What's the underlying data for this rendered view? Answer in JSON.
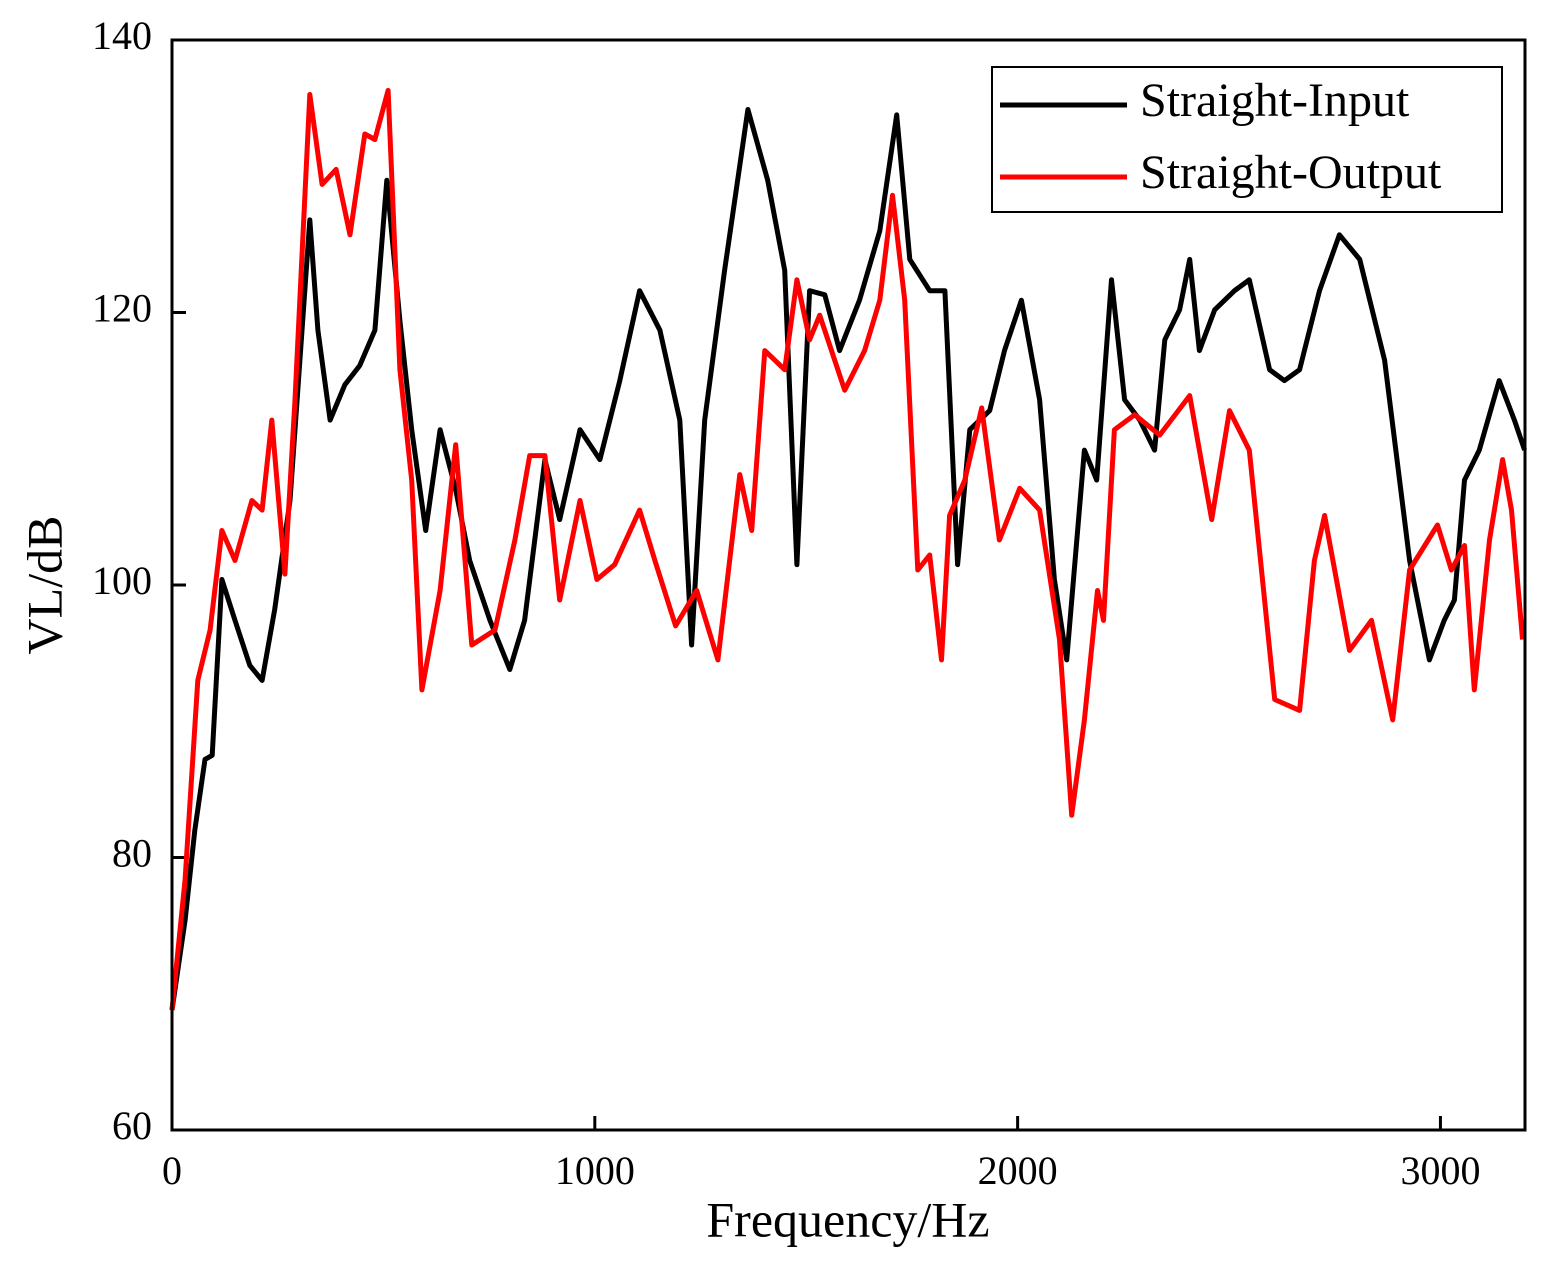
{
  "chart_data": {
    "type": "line",
    "x_label": "Frequency/Hz",
    "y_label": "VL/dB",
    "xlim": [
      0,
      3200
    ],
    "ylim": [
      60,
      140
    ],
    "xticks": [
      0,
      1000,
      2000,
      3000
    ],
    "yticks": [
      60,
      80,
      100,
      120,
      140
    ],
    "legend": "upper right",
    "series": [
      {
        "name": "Straight-Input",
        "color": "#000000",
        "x": [
          0,
          31,
          54,
          78,
          95,
          118,
          149,
          184,
          213,
          243,
          279,
          326,
          345,
          374,
          409,
          444,
          480,
          508,
          539,
          567,
          600,
          634,
          671,
          704,
          752,
          799,
          834,
          882,
          917,
          965,
          1012,
          1059,
          1106,
          1154,
          1201,
          1229,
          1260,
          1307,
          1362,
          1409,
          1449,
          1478,
          1508,
          1544,
          1579,
          1626,
          1674,
          1714,
          1745,
          1792,
          1828,
          1858,
          1887,
          1934,
          1969,
          2009,
          2052,
          2087,
          2116,
          2158,
          2187,
          2222,
          2253,
          2289,
          2324,
          2348,
          2383,
          2407,
          2430,
          2466,
          2513,
          2548,
          2596,
          2631,
          2667,
          2714,
          2761,
          2809,
          2868,
          2927,
          2974,
          3009,
          3033,
          3057,
          3092,
          3139,
          3175,
          3199
        ],
        "values": [
          68.8,
          75.4,
          82,
          87.2,
          87.5,
          100.4,
          97.4,
          94.1,
          93,
          98.2,
          106.2,
          126.8,
          118.7,
          112.1,
          114.7,
          116.1,
          118.7,
          129.7,
          119.4,
          111.4,
          104,
          111.4,
          107,
          101.8,
          97.4,
          93.8,
          97.4,
          109.2,
          104.8,
          111.4,
          109.2,
          115,
          121.6,
          118.7,
          112.1,
          95.6,
          112.1,
          123.1,
          134.9,
          129.7,
          123.1,
          101.5,
          121.6,
          121.3,
          117.2,
          120.9,
          126,
          134.5,
          123.9,
          121.6,
          121.6,
          101.5,
          111.4,
          112.8,
          117.2,
          120.9,
          113.6,
          100.4,
          94.5,
          109.9,
          107.7,
          122.4,
          113.6,
          112.1,
          109.9,
          118,
          120.2,
          123.9,
          117.2,
          120.2,
          121.6,
          122.4,
          115.8,
          115,
          115.8,
          121.6,
          125.7,
          123.9,
          116.5,
          101.8,
          94.5,
          97.4,
          98.9,
          107.7,
          109.9,
          115,
          112.1,
          109.9
        ]
      },
      {
        "name": "Straight-Output",
        "color": "#ff0000",
        "x": [
          0,
          31,
          61,
          90,
          118,
          149,
          189,
          213,
          236,
          267,
          291,
          326,
          355,
          388,
          421,
          456,
          480,
          511,
          539,
          567,
          591,
          634,
          671,
          709,
          764,
          811,
          846,
          882,
          917,
          965,
          1005,
          1047,
          1106,
          1142,
          1191,
          1241,
          1291,
          1343,
          1371,
          1402,
          1449,
          1478,
          1508,
          1532,
          1591,
          1638,
          1674,
          1704,
          1733,
          1764,
          1792,
          1820,
          1839,
          1875,
          1915,
          1957,
          2005,
          2052,
          2099,
          2128,
          2158,
          2189,
          2203,
          2229,
          2277,
          2336,
          2407,
          2459,
          2501,
          2548,
          2608,
          2667,
          2702,
          2726,
          2785,
          2837,
          2887,
          2927,
          2993,
          3026,
          3057,
          3080,
          3116,
          3147,
          3168,
          3194
        ],
        "values": [
          68.8,
          78.4,
          93,
          96.7,
          104,
          101.8,
          106.2,
          105.5,
          112.1,
          100.8,
          113.6,
          136,
          129.4,
          130.5,
          125.7,
          133.1,
          132.7,
          136.3,
          115.8,
          107.7,
          92.3,
          99.6,
          110.3,
          95.6,
          96.7,
          103.3,
          109.5,
          109.5,
          98.9,
          106.2,
          100.4,
          101.5,
          105.5,
          101.8,
          97,
          99.6,
          94.5,
          108.1,
          104,
          117.2,
          115.8,
          122.4,
          118,
          119.8,
          114.3,
          117.2,
          120.9,
          128.6,
          120.9,
          101.1,
          102.2,
          94.5,
          105.1,
          107.7,
          113,
          103.3,
          107.1,
          105.5,
          96,
          83.1,
          90.1,
          99.6,
          97.4,
          111.4,
          112.5,
          111,
          113.9,
          104.8,
          112.8,
          109.9,
          91.6,
          90.8,
          101.8,
          105.1,
          95.2,
          97.4,
          90.1,
          101.1,
          104.4,
          101.1,
          102.9,
          92.3,
          103.3,
          109.2,
          105.5,
          96
        ]
      }
    ]
  }
}
